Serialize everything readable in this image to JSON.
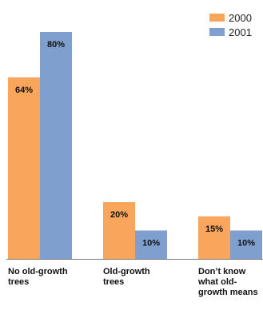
{
  "chart_data": {
    "type": "bar",
    "categories": [
      [
        "No old-growth",
        "trees"
      ],
      [
        "Old-growth",
        "trees"
      ],
      [
        "Don’t know",
        "what old-",
        "growth means"
      ]
    ],
    "series": [
      {
        "name": "2000",
        "color": "#F9A55C",
        "values": [
          64,
          20,
          15
        ],
        "labels": [
          "64%",
          "20%",
          "15%"
        ]
      },
      {
        "name": "2001",
        "color": "#7F9FCF",
        "values": [
          80,
          10,
          10
        ],
        "labels": [
          "80%",
          "10%",
          "10%"
        ]
      }
    ],
    "title": "",
    "xlabel": "",
    "ylabel": "",
    "ylim": [
      0,
      80
    ],
    "grid": false,
    "legend_position": "top-right"
  }
}
